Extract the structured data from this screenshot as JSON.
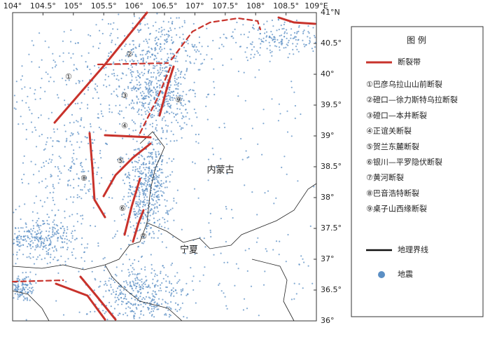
{
  "map": {
    "lon_labels": [
      "104°",
      "104.5°",
      "105°",
      "105.5°",
      "106°",
      "106.5°",
      "107°",
      "107.5°",
      "108°",
      "108.5°",
      "109°E"
    ],
    "lat_labels": [
      "41°N",
      "40.5°",
      "40°",
      "39.5°",
      "39°",
      "38.5°",
      "38°",
      "37.5°",
      "37°",
      "36.5°",
      "36°"
    ],
    "regions": [
      "内蒙古",
      "宁夏"
    ],
    "fault_numbers": [
      "①",
      "②",
      "③",
      "④",
      "⑤",
      "⑥",
      "⑦",
      "⑧",
      "⑨"
    ]
  },
  "legend": {
    "title": "图 例",
    "fault": "断裂带",
    "faults": [
      "①巴彦乌拉山山前断裂",
      "②磴口—徐力斯特乌拉断裂",
      "③磴口—本井断裂",
      "④正谊关断裂",
      "⑤贺兰东麓断裂",
      "⑥银川—平罗隐伏断裂",
      "⑦黄河断裂",
      "⑧巴音浩特断裂",
      "⑨桌子山西缘断裂"
    ],
    "boundary": "地理界线",
    "earthquake": "地震"
  }
}
